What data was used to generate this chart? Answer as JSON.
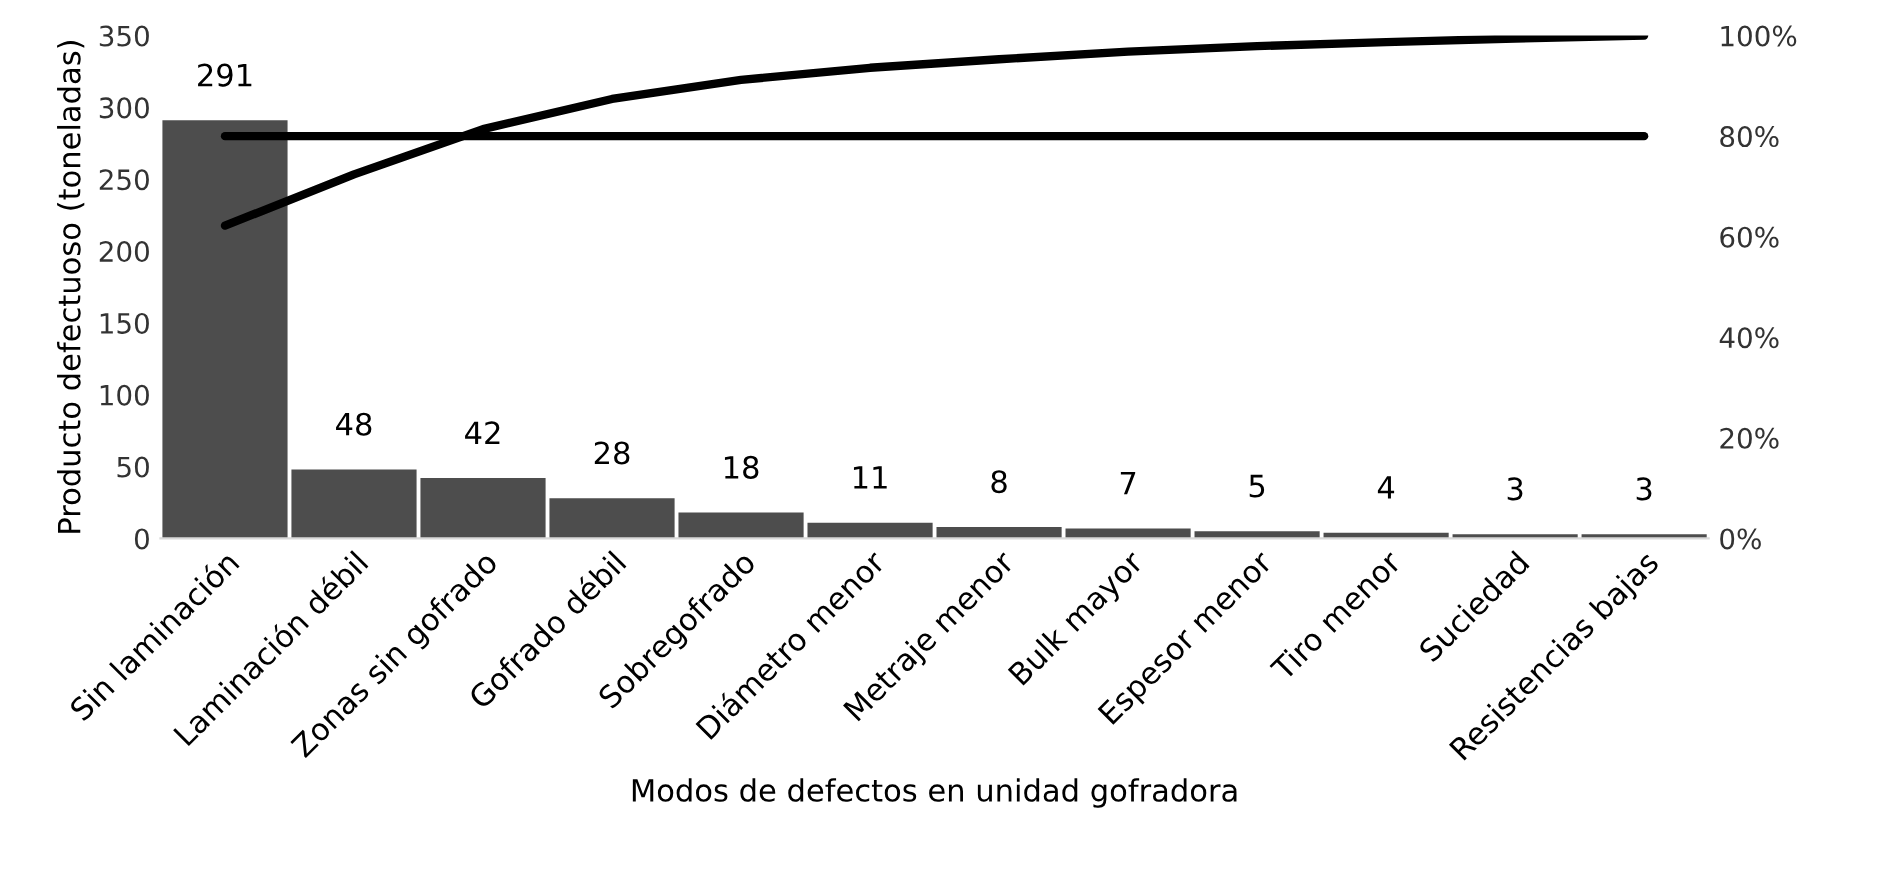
{
  "chart_data": {
    "type": "bar",
    "xlabel": "Modos de defectos en unidad gofradora",
    "ylabel": "Producto defectuoso (toneladas)",
    "categories": [
      "Sin laminación",
      "Laminación débil",
      "Zonas sin gofrado",
      "Gofrado débil",
      "Sobregofrado",
      "Diámetro menor",
      "Metraje menor",
      "Bulk mayor",
      "Espesor menor",
      "Tiro menor",
      "Suciedad",
      "Resistencias bajas"
    ],
    "series": [
      {
        "color": "#4d4d4d",
        "values": [
          291,
          48,
          42,
          28,
          18,
          11,
          8,
          7,
          5,
          4,
          3,
          3
        ],
        "value_labels": [
          "291",
          "48",
          "42",
          "28",
          "18",
          "11",
          "8",
          "7",
          "5",
          "4",
          "3",
          "3"
        ]
      },
      {
        "type": "line",
        "axis": "y2",
        "color": "#000000",
        "values": [
          62.2,
          72.4,
          81.4,
          87.4,
          91.2,
          93.6,
          95.3,
          96.8,
          97.9,
          98.7,
          99.4,
          100
        ]
      },
      {
        "type": "line",
        "axis": "y2",
        "color": "#000000",
        "values": [
          80,
          80,
          80,
          80,
          80,
          80,
          80,
          80,
          80,
          80,
          80,
          80
        ]
      }
    ],
    "ylim": [
      0,
      350
    ],
    "yticks": [
      0,
      50,
      100,
      150,
      200,
      250,
      300,
      350
    ],
    "y2lim": [
      0,
      100
    ],
    "y2ticks": [
      {
        "value": 0,
        "label": "0%"
      },
      {
        "value": 20,
        "label": "20%"
      },
      {
        "value": 40,
        "label": "40%"
      },
      {
        "value": 60,
        "label": "60%"
      },
      {
        "value": 80,
        "label": "80%"
      },
      {
        "value": 100,
        "label": "100%"
      }
    ],
    "grid": false,
    "legend": false
  }
}
